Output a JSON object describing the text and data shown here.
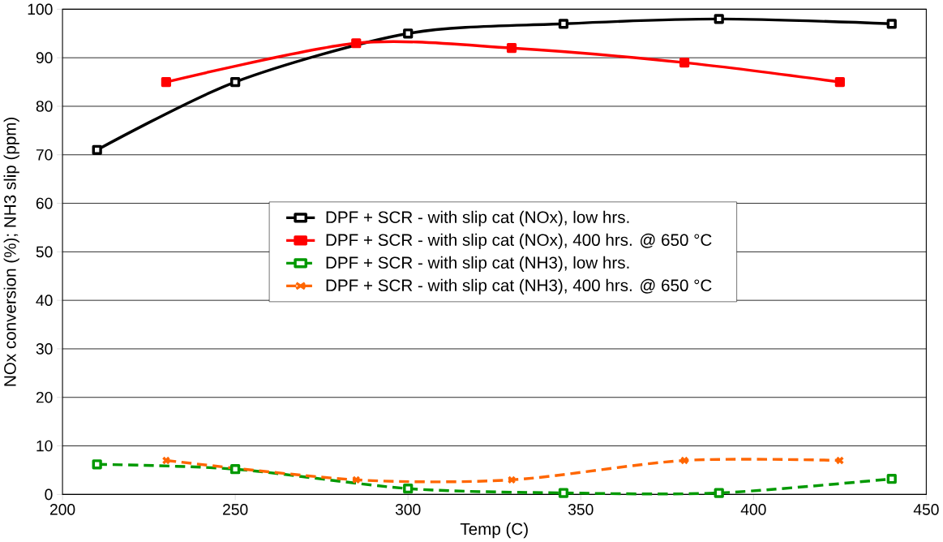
{
  "chart_data": {
    "type": "line",
    "xlabel": "Temp (C)",
    "ylabel": "NOx conversion (%); NH3 slip (ppm)",
    "xlim": [
      200,
      450
    ],
    "xticks": [
      200,
      250,
      300,
      350,
      400,
      450
    ],
    "ylim": [
      0,
      100
    ],
    "yticks": [
      0,
      10,
      20,
      30,
      40,
      50,
      60,
      70,
      80,
      90,
      100
    ],
    "grid": "y",
    "legend": "center",
    "series": [
      {
        "name": "DPF + SCR - with slip cat (NOx), low hrs.",
        "color": "#000000",
        "marker": "square",
        "line_style": "solid",
        "x": [
          210,
          250,
          300,
          345,
          390,
          440
        ],
        "values": [
          71,
          85,
          95,
          97,
          98,
          97
        ]
      },
      {
        "name": "DPF + SCR - with slip cat (NOx), 400 hrs. @ 650 °C",
        "color": "#ff0000",
        "marker": "square",
        "line_style": "solid",
        "x": [
          230,
          285,
          330,
          380,
          425
        ],
        "values": [
          85,
          93,
          92,
          89,
          85
        ]
      },
      {
        "name": "DPF + SCR - with slip cat (NH3), low hrs.",
        "color": "#009900",
        "marker": "square",
        "line_style": "dashed",
        "x": [
          210,
          250,
          300,
          345,
          390,
          440
        ],
        "values": [
          6.2,
          5.2,
          1.2,
          0.3,
          0.3,
          3.2
        ]
      },
      {
        "name": "DPF + SCR - with slip cat (NH3), 400 hrs. @ 650 °C",
        "color": "#ff6600",
        "marker": "cross",
        "line_style": "dashed",
        "x": [
          230,
          285,
          330,
          380,
          425
        ],
        "values": [
          7,
          3,
          3,
          7,
          7
        ]
      }
    ]
  }
}
